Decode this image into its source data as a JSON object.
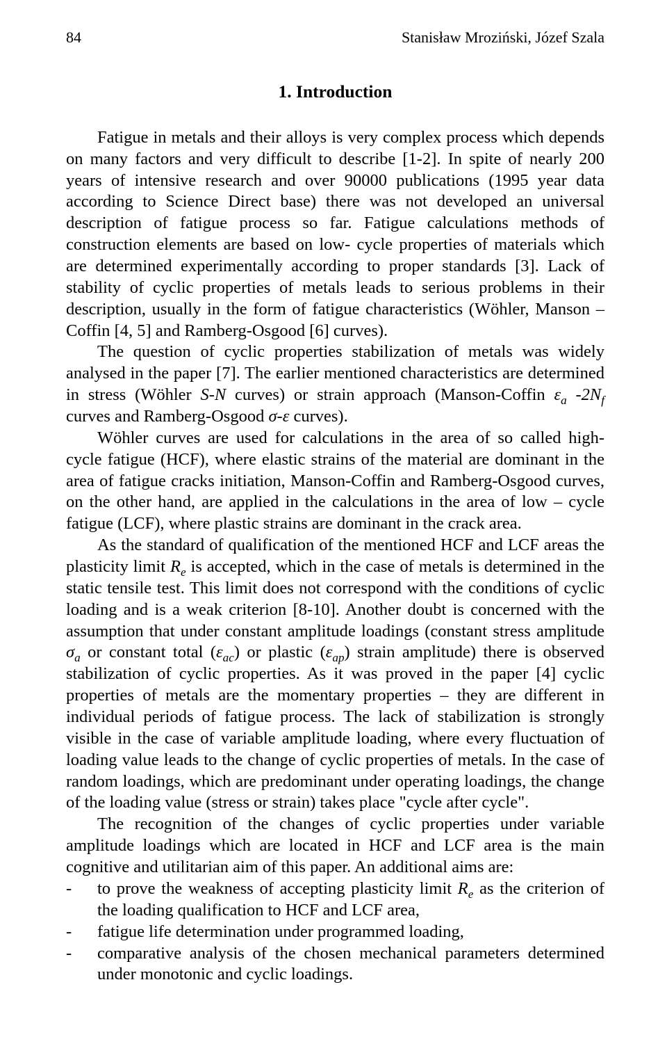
{
  "page_number": "84",
  "running_head": "Stanisław Mroziński, Józef Szala",
  "section_heading": "1. Introduction",
  "p1": "Fatigue in metals and their alloys is very complex process which depends on many factors and very difficult to describe [1-2]. In spite of nearly 200 years of intensive research and over 90000 publications (1995 year data according to Science Direct base) there was not developed an universal description of fatigue process so far. Fatigue calculations methods of construction elements are based on low- cycle properties of materials which are determined experimentally according to proper standards [3]. Lack of stability of cyclic properties of metals leads to serious problems in their description, usually in the form of fatigue characteristics (Wöhler, Manson – Coffin [4, 5] and Ramberg-Osgood [6] curves).",
  "p2_a": "The question of cyclic properties stabilization of metals was widely analysed in the paper [7]. The earlier mentioned characteristics are determined in stress (Wöhler ",
  "p2_sn": "S-N",
  "p2_b": " curves) or strain approach (Manson-Coffin ",
  "p2_eps_a": "ε",
  "p2_eps_a_sub": "a",
  "p2_dash": " -",
  "p2_2nf": "2N",
  "p2_f_sub": "f",
  "p2_c": " curves and Ramberg-Osgood ",
  "p2_sigeps": "σ-ε",
  "p2_d": " curves).",
  "p3": "Wöhler curves are used for calculations in the area of so called high- cycle fatigue (HCF), where elastic strains of the material are dominant in the area of fatigue cracks initiation, Manson-Coffin and Ramberg-Osgood curves, on the other hand, are  applied in the calculations in the area of low – cycle fatigue (LCF), where plastic strains are dominant in the crack area.",
  "p4_a": "As the standard of qualification of the mentioned HCF and LCF areas the plasticity limit ",
  "p4_re": "R",
  "p4_re_sub": "e",
  "p4_b": " is accepted, which in the case of metals is determined in the static tensile test. This limit does not correspond with the conditions of cyclic loading and is a weak criterion [8-10].  Another doubt is concerned with the assumption that under constant amplitude loadings (constant stress amplitude ",
  "p4_sig_a": "σ",
  "p4_sig_a_sub": "a",
  "p4_c": " or constant total (",
  "p4_eps_ac": "ε",
  "p4_eps_ac_sub": "ac",
  "p4_d": ") or plastic (",
  "p4_eps_ap": "ε",
  "p4_eps_ap_sub": "ap",
  "p4_e": ") strain amplitude) there is observed stabilization of cyclic properties. As it was proved in the paper [4] cyclic properties of metals are the momentary properties – they are different in individual periods of fatigue process.  The lack of stabilization is strongly visible in the case of variable amplitude loading, where every fluctuation of loading value leads to the change of cyclic properties of metals. In the case of random loadings, which are predominant under operating loadings, the change of the loading value (stress or strain) takes place \"cycle after cycle\".",
  "p5": "The recognition of the changes of cyclic properties under variable amplitude loadings which are located in HCF and LCF area  is the main cognitive and utilitarian aim of this paper.  An additional aims are:",
  "li1_a": "to prove the weakness of accepting plasticity limit ",
  "li1_re": "R",
  "li1_re_sub": "e",
  "li1_b": "  as the criterion of the loading qualification to HCF and LCF area,",
  "li2": "fatigue life determination under programmed loading,",
  "li3": "comparative analysis of the chosen mechanical parameters determined under monotonic and cyclic loadings."
}
